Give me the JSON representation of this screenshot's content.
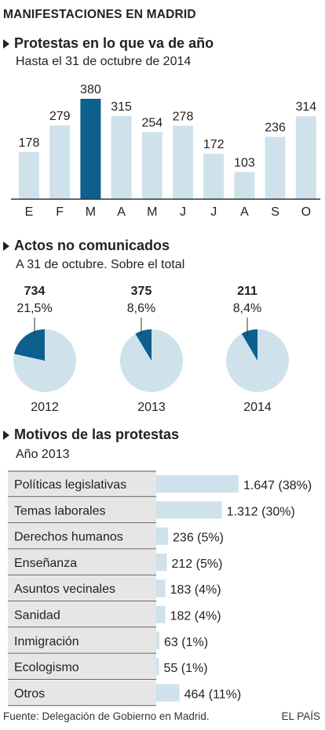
{
  "kicker": "MANIFESTACIONES EN MADRID",
  "sections": {
    "protests": {
      "title": "Protestas en lo que va de año",
      "subtitle": "Hasta el 31 de octubre de 2014"
    },
    "unannounced": {
      "title": "Actos no comunicados",
      "subtitle": "A 31 de octubre. Sobre el total"
    },
    "motives": {
      "title": "Motivos de las protestas",
      "subtitle": "Año 2013"
    }
  },
  "colors": {
    "bar": "#cfe2ec",
    "highlight": "#0d5f8e",
    "table_bg": "#e6e6e6",
    "text": "#222222"
  },
  "chart_data": [
    {
      "type": "bar",
      "categories": [
        "E",
        "F",
        "M",
        "A",
        "M",
        "J",
        "J",
        "A",
        "S",
        "O"
      ],
      "values": [
        178,
        279,
        380,
        315,
        254,
        278,
        172,
        103,
        236,
        314
      ],
      "highlight_index": 2
    },
    {
      "type": "pie",
      "items": [
        {
          "year": "2012",
          "count": "734",
          "percent_label": "21,5%",
          "share": 21.5
        },
        {
          "year": "2013",
          "count": "375",
          "percent_label": "8,6%",
          "share": 8.6
        },
        {
          "year": "2014",
          "count": "211",
          "percent_label": "8,4%",
          "share": 8.4
        }
      ]
    },
    {
      "type": "bar",
      "orientation": "horizontal",
      "categories": [
        "Políticas legislativas",
        "Temas laborales",
        "Derechos humanos",
        "Enseñanza",
        "Asuntos vecinales",
        "Sanidad",
        "Inmigración",
        "Ecologismo",
        "Otros"
      ],
      "values": [
        1647,
        1312,
        236,
        212,
        183,
        182,
        63,
        55,
        464
      ],
      "value_labels": [
        "1.647 (38%)",
        "1.312 (30%)",
        "236 (5%)",
        "212 (5%)",
        "183 (4%)",
        "182 (4%)",
        "63 (1%)",
        "55 (1%)",
        "464 (11%)"
      ]
    }
  ],
  "footer": {
    "source": "Fuente: Delegación de Gobierno en Madrid.",
    "brand": "EL PAÍS"
  }
}
